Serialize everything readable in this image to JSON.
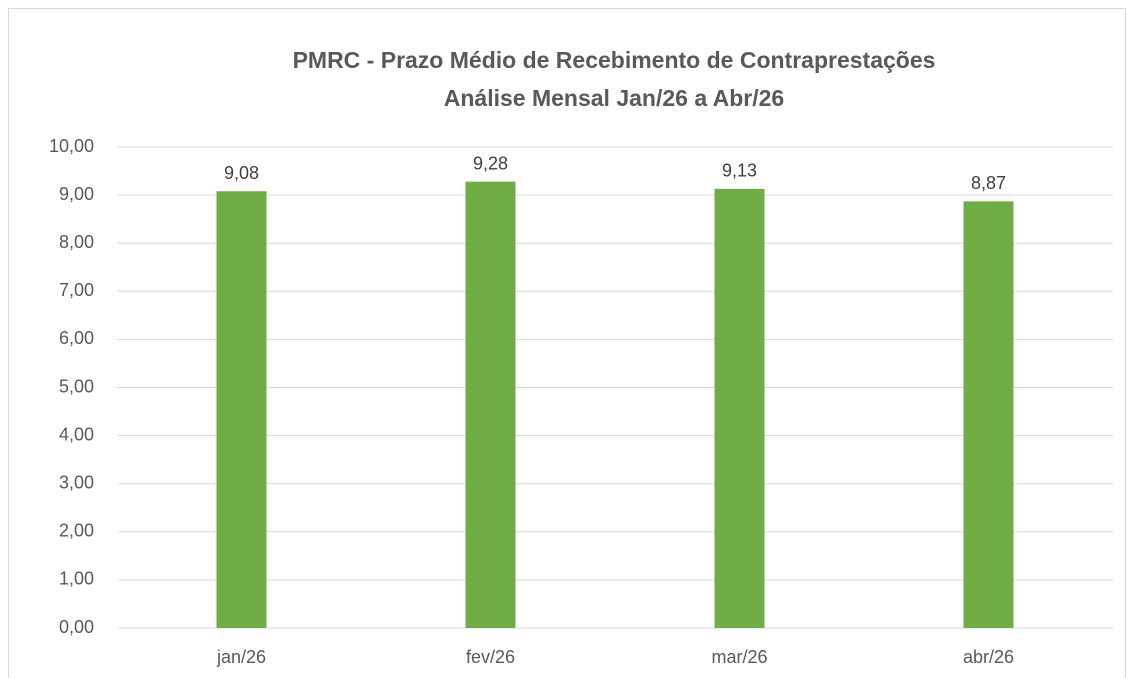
{
  "chart_data": {
    "type": "bar",
    "title": "PMRC - Prazo Médio de Recebimento de Contraprestações",
    "subtitle": "Análise Mensal Jan/26 a Abr/26",
    "categories": [
      "jan/26",
      "fev/26",
      "mar/26",
      "abr/26"
    ],
    "values": [
      9.08,
      9.28,
      9.13,
      8.87
    ],
    "value_labels": [
      "9,08",
      "9,28",
      "9,13",
      "8,87"
    ],
    "color": "#70ad47",
    "ylim": [
      0,
      10
    ],
    "yticks": [
      {
        "value": 0,
        "label": "0,00"
      },
      {
        "value": 1,
        "label": "1,00"
      },
      {
        "value": 2,
        "label": "2,00"
      },
      {
        "value": 3,
        "label": "3,00"
      },
      {
        "value": 4,
        "label": "4,00"
      },
      {
        "value": 5,
        "label": "5,00"
      },
      {
        "value": 6,
        "label": "6,00"
      },
      {
        "value": 7,
        "label": "7,00"
      },
      {
        "value": 8,
        "label": "8,00"
      },
      {
        "value": 9,
        "label": "9,00"
      },
      {
        "value": 10,
        "label": "10,00"
      }
    ],
    "grid": true
  }
}
